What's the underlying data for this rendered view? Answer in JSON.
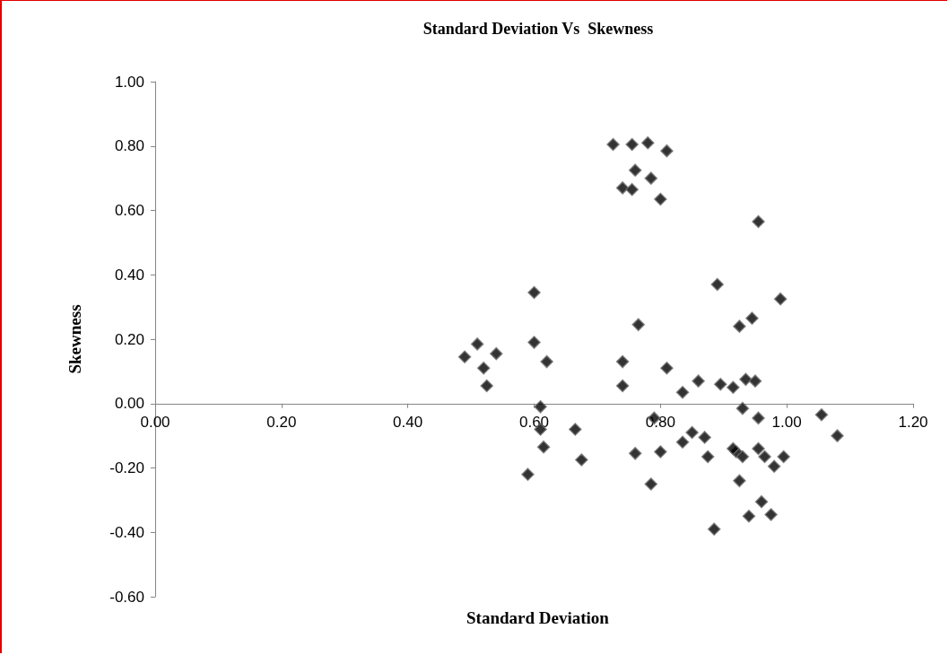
{
  "chart_data": {
    "type": "scatter",
    "title": "Standard Deviation Vs  Skewness",
    "xlabel": "Standard Deviation",
    "ylabel": "Skewness",
    "marker": "diamond",
    "grid": false,
    "xlim": [
      0,
      1.2
    ],
    "ylim": [
      -0.6,
      1
    ],
    "xticks": [
      {
        "value": 0,
        "label": "0.00"
      },
      {
        "value": 0.2,
        "label": "0.20"
      },
      {
        "value": 0.4,
        "label": "0.40"
      },
      {
        "value": 0.6,
        "label": "0.60"
      },
      {
        "value": 0.8,
        "label": "0.80"
      },
      {
        "value": 1,
        "label": "1.00"
      },
      {
        "value": 1.2,
        "label": "1.20"
      }
    ],
    "yticks": [
      {
        "value": -0.6,
        "label": "-0.60"
      },
      {
        "value": -0.4,
        "label": "-0.40"
      },
      {
        "value": -0.2,
        "label": "-0.20"
      },
      {
        "value": 0,
        "label": "0.00"
      },
      {
        "value": 0.2,
        "label": "0.20"
      },
      {
        "value": 0.4,
        "label": "0.40"
      },
      {
        "value": 0.6,
        "label": "0.60"
      },
      {
        "value": 0.8,
        "label": "0.80"
      },
      {
        "value": 1,
        "label": "1.00"
      }
    ],
    "series": [
      {
        "color": "#000000",
        "x": [
          0.49,
          0.51,
          0.52,
          0.525,
          0.54,
          0.59,
          0.6,
          0.6,
          0.61,
          0.61,
          0.615,
          0.62,
          0.665,
          0.675,
          0.725,
          0.74,
          0.74,
          0.74,
          0.755,
          0.755,
          0.76,
          0.76,
          0.765,
          0.78,
          0.785,
          0.785,
          0.79,
          0.8,
          0.8,
          0.81,
          0.81,
          0.835,
          0.835,
          0.85,
          0.86,
          0.87,
          0.875,
          0.885,
          0.89,
          0.895,
          0.915,
          0.92,
          0.925,
          0.925,
          0.93,
          0.93,
          0.935,
          0.94,
          0.945,
          0.95,
          0.955,
          0.955,
          0.955,
          0.96,
          0.965,
          0.975,
          0.98,
          0.99,
          0.995,
          1.055,
          1.08,
          0.915
        ],
        "values": [
          0.145,
          0.185,
          0.11,
          0.055,
          0.155,
          -0.22,
          0.345,
          0.19,
          -0.01,
          -0.08,
          -0.135,
          0.13,
          -0.08,
          -0.175,
          0.805,
          0.67,
          0.13,
          0.055,
          0.805,
          0.665,
          0.725,
          -0.155,
          0.245,
          0.81,
          0.7,
          -0.25,
          -0.045,
          0.635,
          -0.15,
          0.785,
          0.11,
          0.035,
          -0.12,
          -0.09,
          0.07,
          -0.105,
          -0.165,
          -0.39,
          0.37,
          0.06,
          0.05,
          -0.15,
          0.24,
          -0.24,
          -0.165,
          -0.015,
          0.075,
          -0.35,
          0.265,
          0.07,
          0.565,
          -0.045,
          -0.14,
          -0.305,
          -0.165,
          -0.345,
          -0.195,
          0.325,
          -0.165,
          -0.035,
          -0.1,
          -0.14
        ]
      }
    ]
  }
}
